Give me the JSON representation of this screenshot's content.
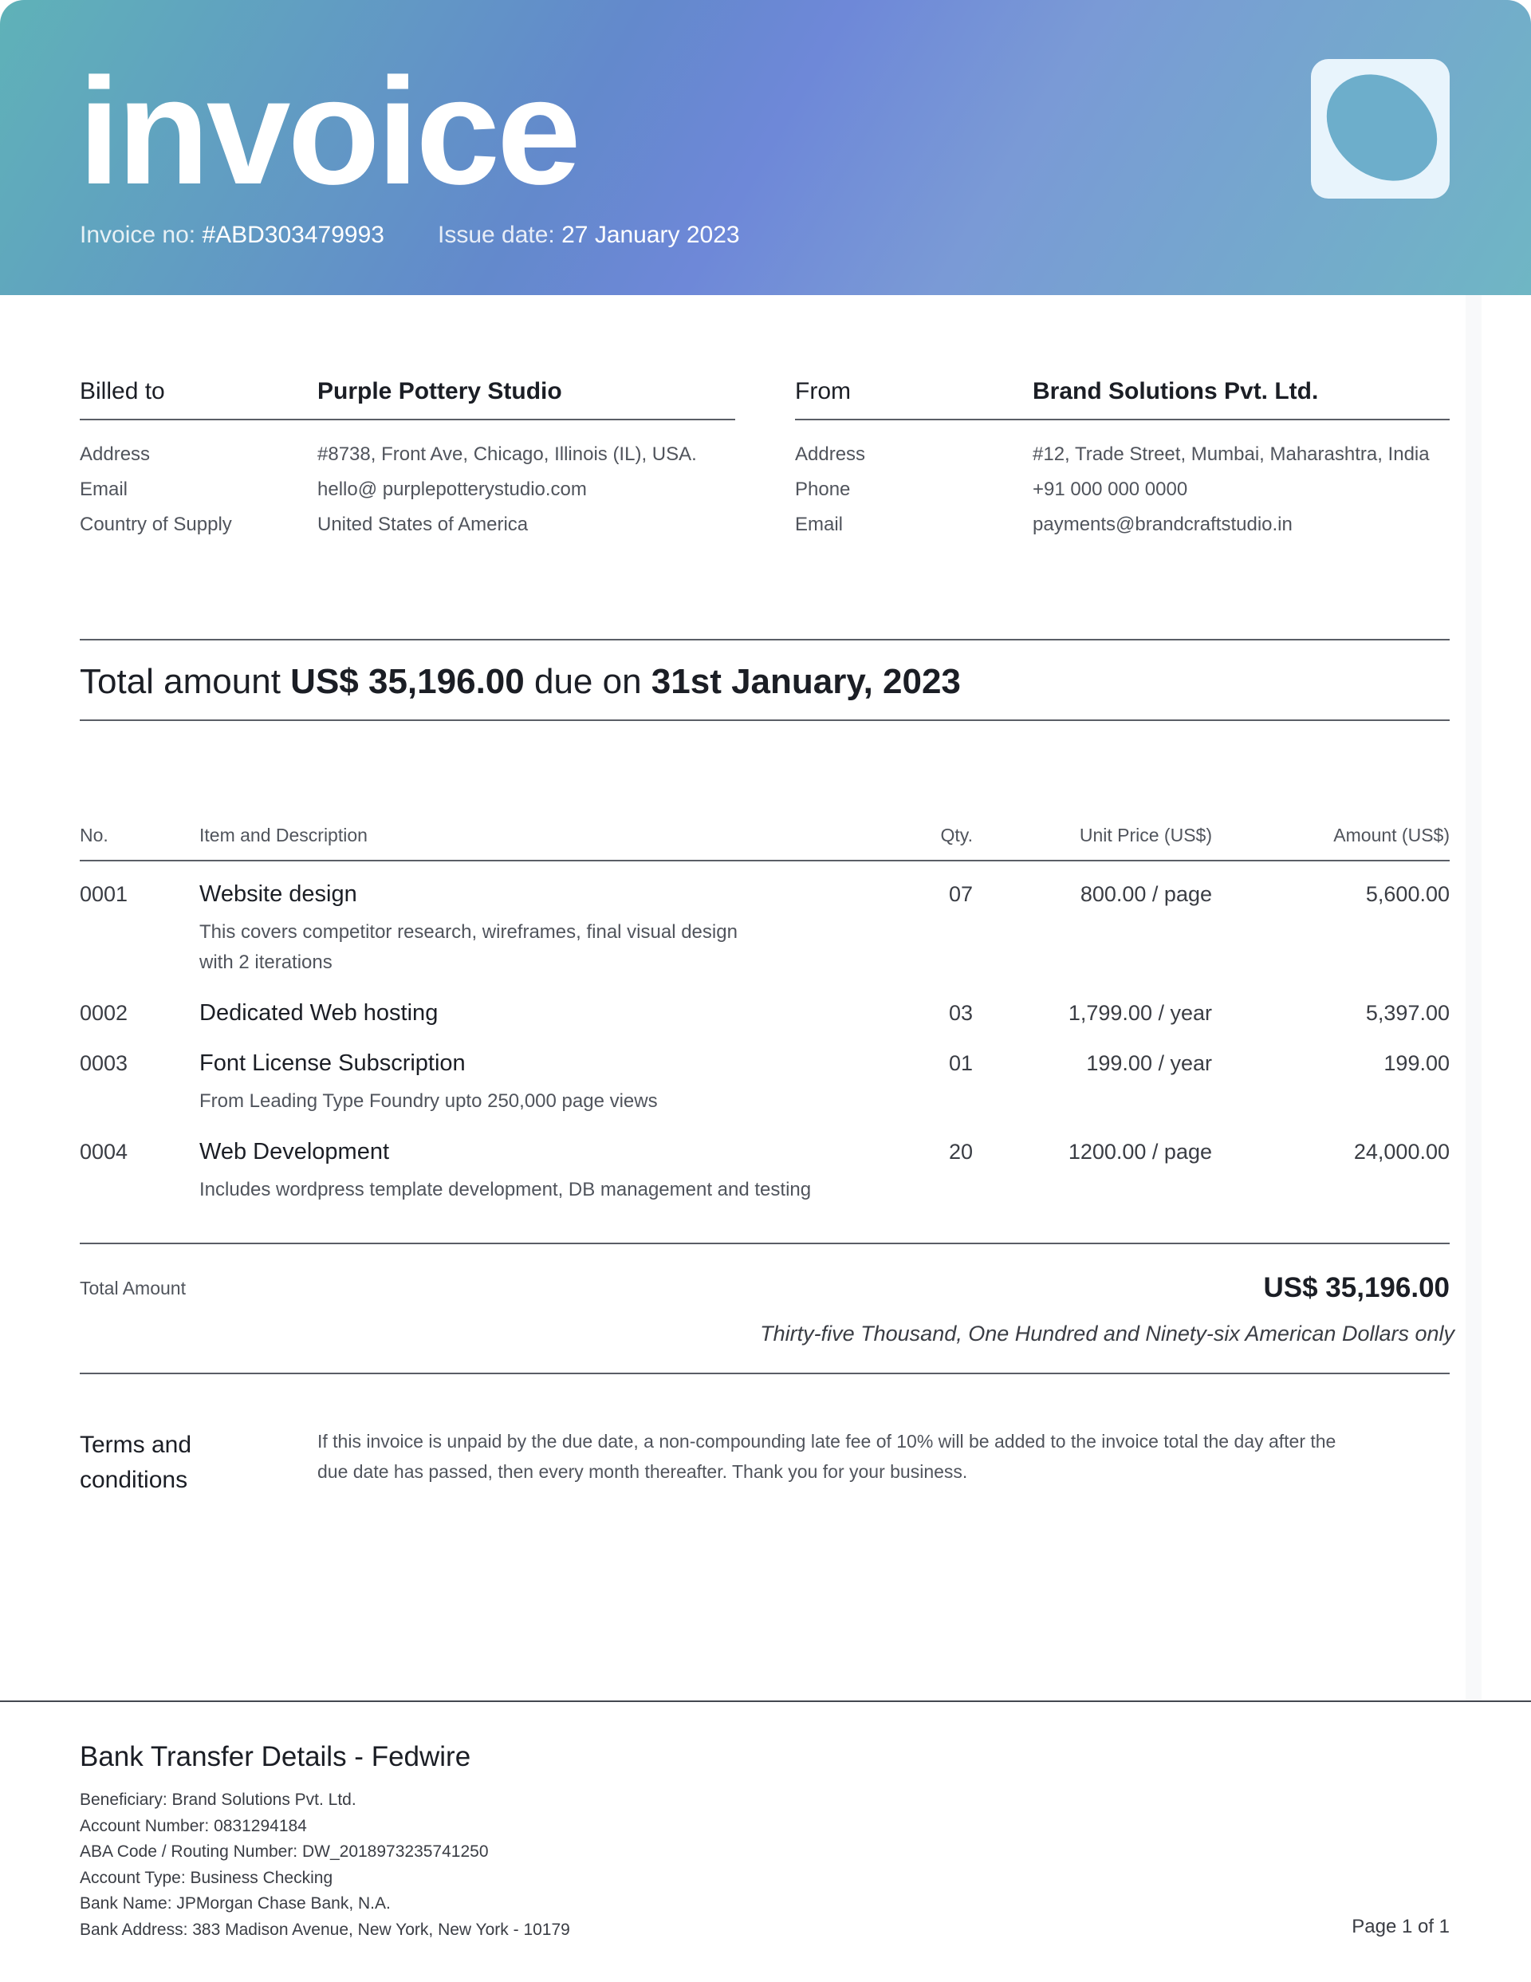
{
  "header": {
    "title": "invoice",
    "invoice_no_label": "Invoice no:",
    "invoice_no": "#ABD303479993",
    "issue_date_label": "Issue date:",
    "issue_date": "27 January 2023",
    "logo_icon": "ellipse-logo",
    "gradient_colors": [
      "#5fb2b8",
      "#6e88d8",
      "#6fb6c4"
    ]
  },
  "billed_to": {
    "heading": "Billed to",
    "name": "Purple Pottery Studio",
    "rows": [
      {
        "label": "Address",
        "value": "#8738, Front Ave, Chicago, Illinois (IL), USA."
      },
      {
        "label": "Email",
        "value": "hello@ purplepotterystudio.com"
      },
      {
        "label": "Country of Supply",
        "value": "United States of America"
      }
    ]
  },
  "from": {
    "heading": "From",
    "name": "Brand Solutions Pvt. Ltd.",
    "rows": [
      {
        "label": "Address",
        "value": "#12, Trade Street, Mumbai, Maharashtra, India"
      },
      {
        "label": "Phone",
        "value": "+91 000 000 0000"
      },
      {
        "label": "Email",
        "value": "payments@brandcraftstudio.in"
      }
    ]
  },
  "summary": {
    "prefix": "Total amount",
    "amount": "US$ 35,196.00",
    "mid": "due on",
    "due": "31st January, 2023"
  },
  "table": {
    "headers": [
      "No.",
      "Item and Description",
      "Qty.",
      "Unit Price (US$)",
      "Amount (US$)"
    ],
    "rows": [
      {
        "no": "0001",
        "item": "Website design",
        "desc": [
          "This covers competitor research, wireframes, final visual design",
          "with 2 iterations"
        ],
        "qty": "07",
        "unit": "800.00 / page",
        "amount": "5,600.00"
      },
      {
        "no": "0002",
        "item": "Dedicated Web hosting",
        "desc": [],
        "qty": "03",
        "unit": "1,799.00 / year",
        "amount": "5,397.00"
      },
      {
        "no": "0003",
        "item": "Font License Subscription",
        "desc": [
          "From Leading Type Foundry upto 250,000 page views"
        ],
        "qty": "01",
        "unit": "199.00 / year",
        "amount": "199.00"
      },
      {
        "no": "0004",
        "item": "Web Development",
        "desc": [
          "Includes wordpress template development, DB management and testing"
        ],
        "qty": "20",
        "unit": "1200.00 / page",
        "amount": "24,000.00"
      }
    ]
  },
  "totals": {
    "label": "Total Amount",
    "amount": "US$ 35,196.00",
    "words": "Thirty-five Thousand, One Hundred and Ninety-six American Dollars only"
  },
  "terms": {
    "heading_1": "Terms and",
    "heading_2": "conditions",
    "line_1": "If this invoice is unpaid by the due date, a non-compounding late fee of 10% will be added to the invoice total the day after the",
    "line_2": "due date has passed, then every month thereafter. Thank you for your business."
  },
  "bank": {
    "title": "Bank Transfer Details - Fedwire",
    "lines": [
      "Beneficiary: Brand Solutions Pvt. Ltd.",
      "Account Number: 0831294184",
      "ABA Code / Routing Number: DW_2018973235741250",
      "Account Type: Business Checking",
      "Bank Name: JPMorgan Chase Bank, N.A.",
      "Bank Address: 383 Madison Avenue, New York, New York - 10179"
    ],
    "page": "Page 1 of 1"
  }
}
